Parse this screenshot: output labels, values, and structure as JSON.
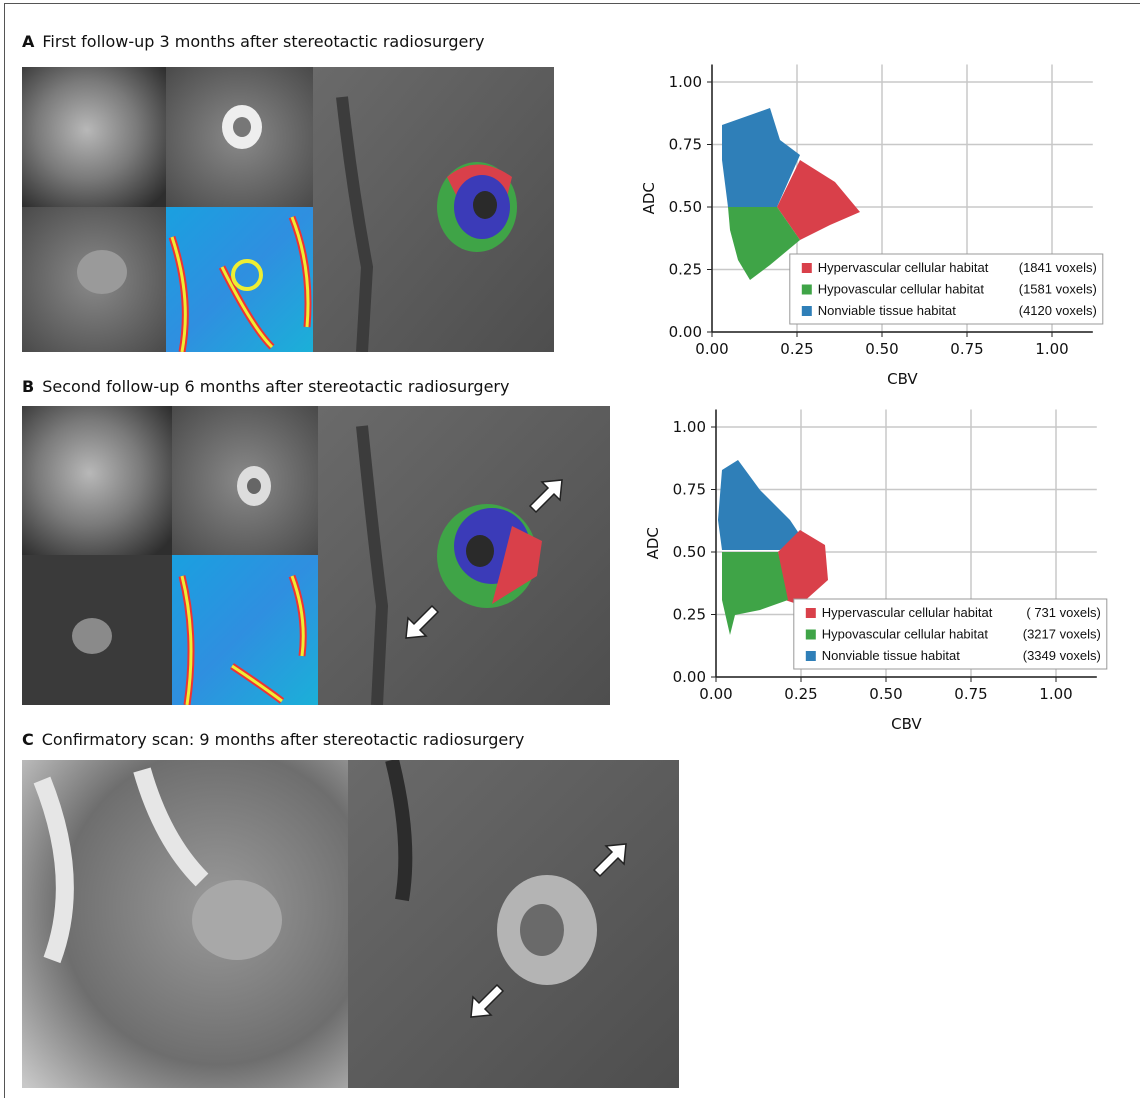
{
  "panels": [
    {
      "letter": "A",
      "title": "First follow-up 3 months after stereotactic radiosurgery"
    },
    {
      "letter": "B",
      "title": "Second follow-up 6 months after stereotactic radiosurgery"
    },
    {
      "letter": "C",
      "title": "Confirmatory scan: 9 months after stereotactic radiosurgery"
    }
  ],
  "chart_data": [
    {
      "type": "scatter",
      "xlabel": "CBV",
      "ylabel": "ADC",
      "xlim": [
        0,
        1.12
      ],
      "ylim": [
        0,
        1.07
      ],
      "xticks": [
        {
          "value": 0,
          "label": "0.00"
        },
        0.25,
        {
          "value": 0.5,
          "label": "0.50"
        },
        0.75,
        {
          "value": 1,
          "label": "1.00"
        }
      ],
      "yticks": [
        {
          "value": 0,
          "label": "0.00"
        },
        0.25,
        {
          "value": 0.5,
          "label": "0.50"
        },
        0.75,
        {
          "value": 1,
          "label": "1.00"
        }
      ],
      "grid": true,
      "legend": "lower right",
      "series": [
        {
          "name": "Hypervascular cellular habitat",
          "color": "#d9404a",
          "voxels": 1841,
          "voxels_label": "(1841 voxels)"
        },
        {
          "name": "Hypovascular cellular habitat",
          "color": "#3fa447",
          "voxels": 1581,
          "voxels_label": "(1581 voxels)"
        },
        {
          "name": "Nonviable tissue habitat",
          "color": "#2f7fb8",
          "voxels": 4120,
          "voxels_label": "(4120 voxels)"
        }
      ]
    },
    {
      "type": "scatter",
      "xlabel": "CBV",
      "ylabel": "ADC",
      "xlim": [
        0,
        1.12
      ],
      "ylim": [
        0,
        1.07
      ],
      "xticks": [
        {
          "value": 0,
          "label": "0.00"
        },
        0.25,
        {
          "value": 0.5,
          "label": "0.50"
        },
        0.75,
        {
          "value": 1,
          "label": "1.00"
        }
      ],
      "yticks": [
        {
          "value": 0,
          "label": "0.00"
        },
        0.25,
        {
          "value": 0.5,
          "label": "0.50"
        },
        0.75,
        {
          "value": 1,
          "label": "1.00"
        }
      ],
      "grid": true,
      "legend": "lower right",
      "series": [
        {
          "name": "Hypervascular cellular habitat",
          "color": "#d9404a",
          "voxels": 731,
          "voxels_label": "( 731 voxels)"
        },
        {
          "name": "Hypovascular cellular habitat",
          "color": "#3fa447",
          "voxels": 3217,
          "voxels_label": "(3217 voxels)"
        },
        {
          "name": "Nonviable tissue habitat",
          "color": "#2f7fb8",
          "voxels": 3349,
          "voxels_label": "(3349 voxels)"
        }
      ]
    }
  ]
}
